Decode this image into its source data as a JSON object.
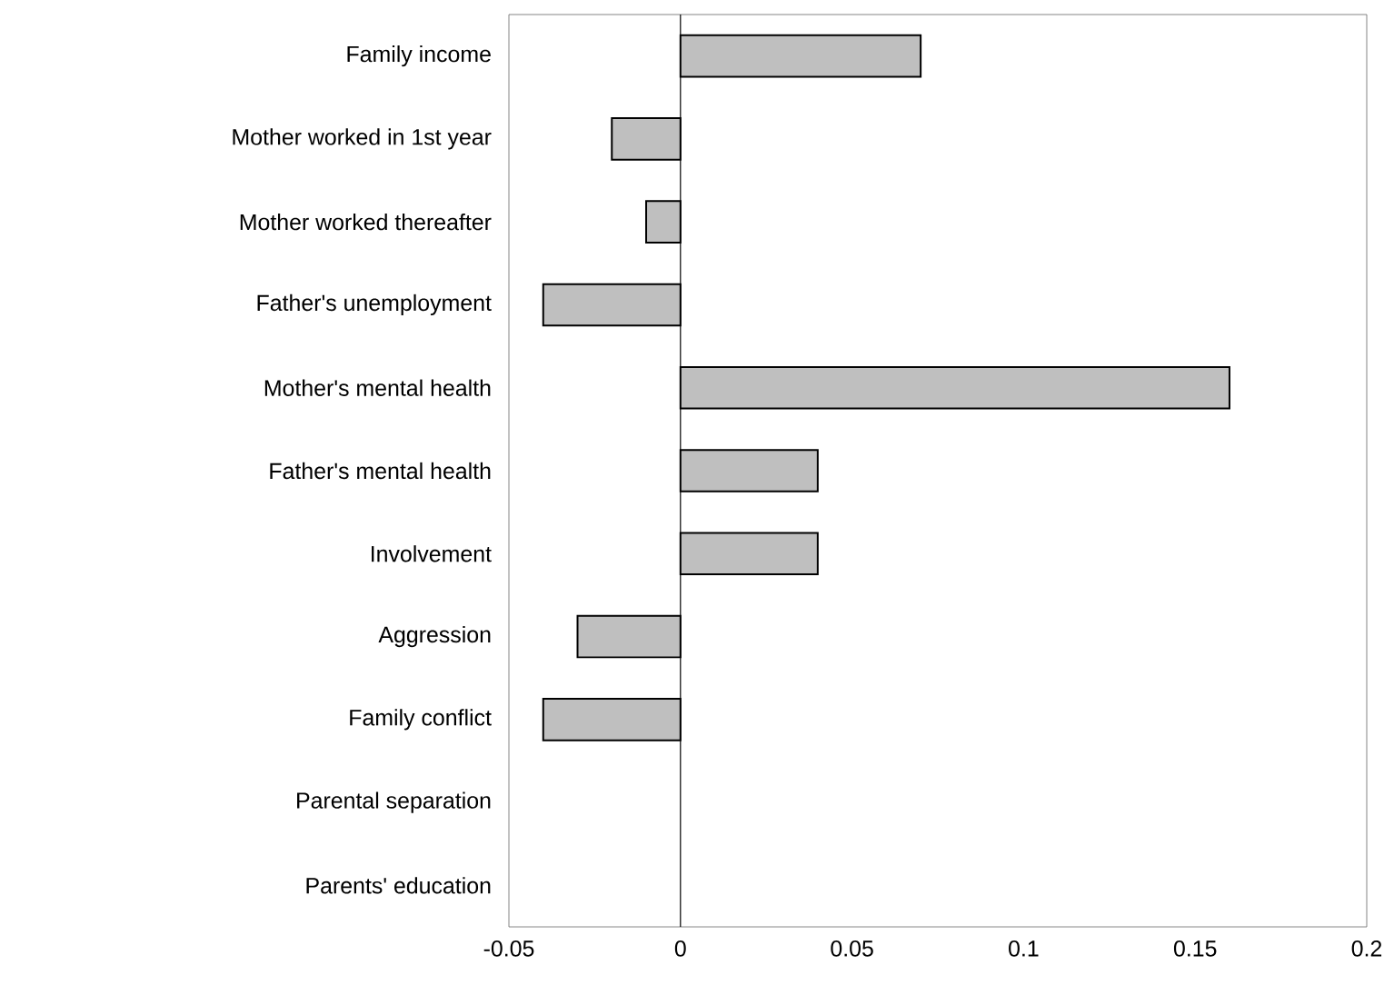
{
  "chart_data": {
    "type": "bar",
    "orientation": "horizontal",
    "categories": [
      "Family income",
      "Mother worked in 1st year",
      "Mother worked thereafter",
      "Father's unemployment",
      "Mother's mental health",
      "Father's mental health",
      "Involvement",
      "Aggression",
      "Family conflict",
      "Parental separation",
      "Parents' education"
    ],
    "values": [
      0.07,
      -0.02,
      -0.01,
      -0.04,
      0.16,
      0.04,
      0.04,
      -0.03,
      -0.04,
      0,
      0
    ],
    "color": "#bfbfbf",
    "xlim": [
      -0.05,
      0.2
    ],
    "xticks": [
      -0.05,
      0,
      0.05,
      0.1,
      0.15,
      0.2
    ],
    "ref_lines": [
      {
        "axis": "x",
        "value": 0,
        "color": "#000000"
      }
    ]
  }
}
